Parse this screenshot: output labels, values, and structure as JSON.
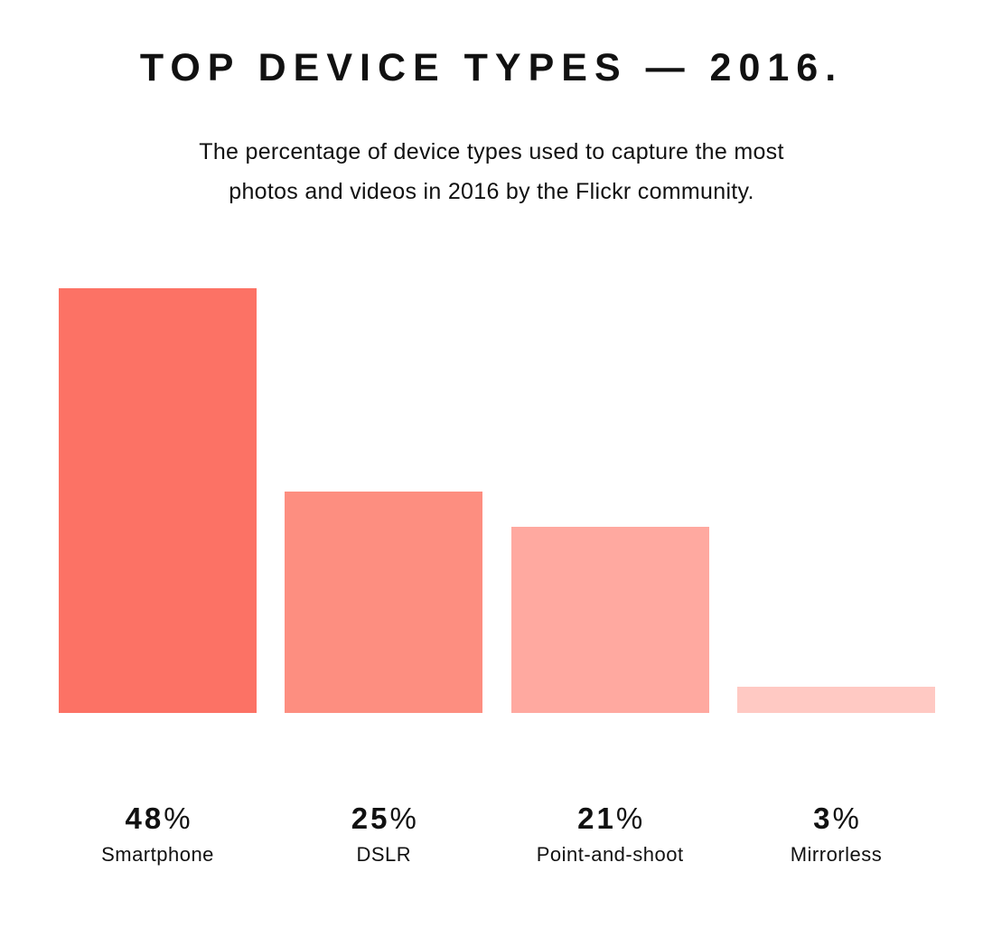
{
  "page": {
    "background_color": "#ffffff",
    "text_color": "#111111"
  },
  "header": {
    "title": "TOP DEVICE TYPES — 2016.",
    "subtitle_line1": "The percentage of device types used to capture the most",
    "subtitle_line2": "photos and videos in 2016 by the Flickr community."
  },
  "chart_data": {
    "type": "bar",
    "title": "TOP DEVICE TYPES — 2016.",
    "subtitle": "The percentage of device types used to capture the most photos and videos in 2016 by the Flickr community.",
    "categories": [
      "Smartphone",
      "DSLR",
      "Point-and-shoot",
      "Mirrorless"
    ],
    "values": [
      48,
      25,
      21,
      3
    ],
    "value_labels": [
      "48",
      "25",
      "21",
      "3"
    ],
    "value_suffix": "%",
    "bar_colors": [
      "#fc7265",
      "#fd8e80",
      "#ffa9a0",
      "#ffc9c3"
    ],
    "xlabel": "",
    "ylabel": "",
    "ylim": [
      0,
      48
    ],
    "grid": false,
    "legend": false,
    "orientation": "vertical",
    "axis_lines": false
  }
}
